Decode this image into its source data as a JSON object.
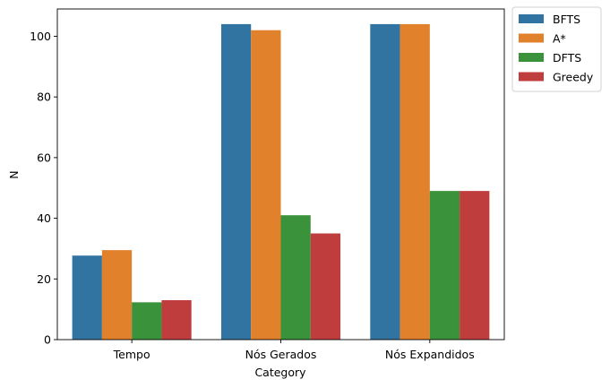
{
  "chart_data": {
    "type": "bar",
    "title": "",
    "xlabel": "Category",
    "ylabel": "N",
    "categories": [
      "Tempo",
      "Nós Gerados",
      "Nós Expandidos"
    ],
    "series": [
      {
        "name": "BFTS",
        "color": "#3274a1",
        "values": [
          27.7,
          104,
          104
        ]
      },
      {
        "name": "A*",
        "color": "#e1812c",
        "values": [
          29.5,
          102,
          104
        ]
      },
      {
        "name": "DFTS",
        "color": "#3a923a",
        "values": [
          12.3,
          41,
          49
        ]
      },
      {
        "name": "Greedy",
        "color": "#c03d3e",
        "values": [
          13.0,
          35,
          49
        ]
      }
    ],
    "ylim": [
      0,
      109
    ],
    "yticks": [
      0,
      20,
      40,
      60,
      80,
      100
    ],
    "grid": false,
    "legend": "outside-top-right"
  }
}
